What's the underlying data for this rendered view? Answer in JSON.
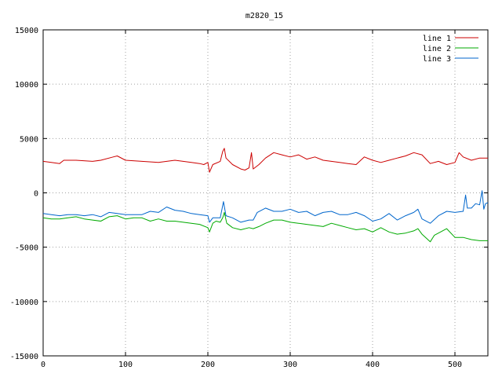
{
  "chart_data": {
    "type": "line",
    "title": "m2820_15",
    "xlabel": "",
    "ylabel": "",
    "xlim": [
      0,
      540
    ],
    "ylim": [
      -15000,
      15000
    ],
    "xticks": [
      0,
      100,
      200,
      300,
      400,
      500
    ],
    "yticks": [
      -15000,
      -10000,
      -5000,
      0,
      5000,
      10000,
      15000
    ],
    "grid": true,
    "legend_position": "top-right",
    "series": [
      {
        "name": "line 1",
        "color": "#cc0000",
        "points": [
          [
            0,
            2900
          ],
          [
            10,
            2800
          ],
          [
            20,
            2700
          ],
          [
            25,
            3000
          ],
          [
            40,
            3000
          ],
          [
            60,
            2900
          ],
          [
            70,
            3000
          ],
          [
            85,
            3300
          ],
          [
            90,
            3400
          ],
          [
            100,
            3000
          ],
          [
            120,
            2900
          ],
          [
            140,
            2800
          ],
          [
            160,
            3000
          ],
          [
            180,
            2800
          ],
          [
            190,
            2700
          ],
          [
            195,
            2600
          ],
          [
            200,
            2800
          ],
          [
            202,
            1900
          ],
          [
            206,
            2600
          ],
          [
            215,
            2900
          ],
          [
            218,
            3800
          ],
          [
            220,
            4100
          ],
          [
            222,
            3200
          ],
          [
            230,
            2600
          ],
          [
            240,
            2200
          ],
          [
            245,
            2100
          ],
          [
            250,
            2300
          ],
          [
            253,
            3700
          ],
          [
            255,
            2200
          ],
          [
            262,
            2600
          ],
          [
            270,
            3200
          ],
          [
            280,
            3700
          ],
          [
            290,
            3500
          ],
          [
            300,
            3300
          ],
          [
            310,
            3500
          ],
          [
            320,
            3100
          ],
          [
            330,
            3300
          ],
          [
            340,
            3000
          ],
          [
            350,
            2900
          ],
          [
            360,
            2800
          ],
          [
            370,
            2700
          ],
          [
            380,
            2600
          ],
          [
            390,
            3300
          ],
          [
            400,
            3000
          ],
          [
            410,
            2800
          ],
          [
            420,
            3000
          ],
          [
            430,
            3200
          ],
          [
            440,
            3400
          ],
          [
            450,
            3700
          ],
          [
            460,
            3500
          ],
          [
            470,
            2700
          ],
          [
            480,
            2900
          ],
          [
            490,
            2600
          ],
          [
            500,
            2800
          ],
          [
            505,
            3700
          ],
          [
            510,
            3300
          ],
          [
            520,
            3000
          ],
          [
            530,
            3200
          ],
          [
            540,
            3200
          ]
        ]
      },
      {
        "name": "line 2",
        "color": "#00aa00",
        "points": [
          [
            0,
            -2300
          ],
          [
            10,
            -2400
          ],
          [
            20,
            -2400
          ],
          [
            30,
            -2300
          ],
          [
            40,
            -2200
          ],
          [
            50,
            -2400
          ],
          [
            60,
            -2500
          ],
          [
            70,
            -2600
          ],
          [
            80,
            -2200
          ],
          [
            90,
            -2100
          ],
          [
            100,
            -2400
          ],
          [
            110,
            -2300
          ],
          [
            120,
            -2300
          ],
          [
            130,
            -2600
          ],
          [
            140,
            -2400
          ],
          [
            150,
            -2600
          ],
          [
            160,
            -2600
          ],
          [
            170,
            -2700
          ],
          [
            180,
            -2800
          ],
          [
            190,
            -2900
          ],
          [
            200,
            -3200
          ],
          [
            202,
            -3600
          ],
          [
            206,
            -2800
          ],
          [
            210,
            -2600
          ],
          [
            215,
            -2700
          ],
          [
            218,
            -2300
          ],
          [
            220,
            -1800
          ],
          [
            223,
            -2800
          ],
          [
            230,
            -3200
          ],
          [
            240,
            -3400
          ],
          [
            250,
            -3200
          ],
          [
            255,
            -3300
          ],
          [
            262,
            -3100
          ],
          [
            270,
            -2800
          ],
          [
            280,
            -2500
          ],
          [
            290,
            -2500
          ],
          [
            300,
            -2700
          ],
          [
            310,
            -2800
          ],
          [
            320,
            -2900
          ],
          [
            330,
            -3000
          ],
          [
            340,
            -3100
          ],
          [
            350,
            -2800
          ],
          [
            360,
            -3000
          ],
          [
            370,
            -3200
          ],
          [
            380,
            -3400
          ],
          [
            390,
            -3300
          ],
          [
            400,
            -3600
          ],
          [
            410,
            -3200
          ],
          [
            420,
            -3600
          ],
          [
            430,
            -3800
          ],
          [
            440,
            -3700
          ],
          [
            450,
            -3500
          ],
          [
            455,
            -3300
          ],
          [
            460,
            -3800
          ],
          [
            470,
            -4500
          ],
          [
            475,
            -3900
          ],
          [
            480,
            -3700
          ],
          [
            490,
            -3300
          ],
          [
            500,
            -4100
          ],
          [
            510,
            -4100
          ],
          [
            520,
            -4300
          ],
          [
            530,
            -4400
          ],
          [
            540,
            -4400
          ]
        ]
      },
      {
        "name": "line 3",
        "color": "#0066cc",
        "points": [
          [
            0,
            -1900
          ],
          [
            10,
            -2000
          ],
          [
            20,
            -2100
          ],
          [
            30,
            -2000
          ],
          [
            40,
            -2000
          ],
          [
            50,
            -2100
          ],
          [
            60,
            -2000
          ],
          [
            70,
            -2200
          ],
          [
            80,
            -1800
          ],
          [
            90,
            -1900
          ],
          [
            100,
            -2000
          ],
          [
            110,
            -2000
          ],
          [
            120,
            -2000
          ],
          [
            130,
            -1700
          ],
          [
            140,
            -1800
          ],
          [
            150,
            -1300
          ],
          [
            160,
            -1600
          ],
          [
            170,
            -1700
          ],
          [
            180,
            -1900
          ],
          [
            190,
            -2000
          ],
          [
            200,
            -2100
          ],
          [
            202,
            -2700
          ],
          [
            206,
            -2300
          ],
          [
            215,
            -2300
          ],
          [
            219,
            -800
          ],
          [
            222,
            -2100
          ],
          [
            230,
            -2300
          ],
          [
            240,
            -2700
          ],
          [
            250,
            -2500
          ],
          [
            255,
            -2500
          ],
          [
            260,
            -1800
          ],
          [
            270,
            -1400
          ],
          [
            280,
            -1700
          ],
          [
            290,
            -1700
          ],
          [
            300,
            -1500
          ],
          [
            310,
            -1800
          ],
          [
            320,
            -1700
          ],
          [
            330,
            -2100
          ],
          [
            340,
            -1800
          ],
          [
            350,
            -1700
          ],
          [
            360,
            -2000
          ],
          [
            370,
            -2000
          ],
          [
            380,
            -1800
          ],
          [
            390,
            -2100
          ],
          [
            400,
            -2600
          ],
          [
            410,
            -2400
          ],
          [
            420,
            -1900
          ],
          [
            430,
            -2500
          ],
          [
            440,
            -2100
          ],
          [
            450,
            -1800
          ],
          [
            455,
            -1500
          ],
          [
            460,
            -2400
          ],
          [
            470,
            -2800
          ],
          [
            480,
            -2100
          ],
          [
            490,
            -1700
          ],
          [
            500,
            -1800
          ],
          [
            510,
            -1700
          ],
          [
            513,
            -200
          ],
          [
            515,
            -1400
          ],
          [
            520,
            -1400
          ],
          [
            525,
            -1000
          ],
          [
            530,
            -1100
          ],
          [
            533,
            200
          ],
          [
            535,
            -1500
          ],
          [
            537,
            -1000
          ],
          [
            540,
            -900
          ]
        ]
      }
    ]
  }
}
